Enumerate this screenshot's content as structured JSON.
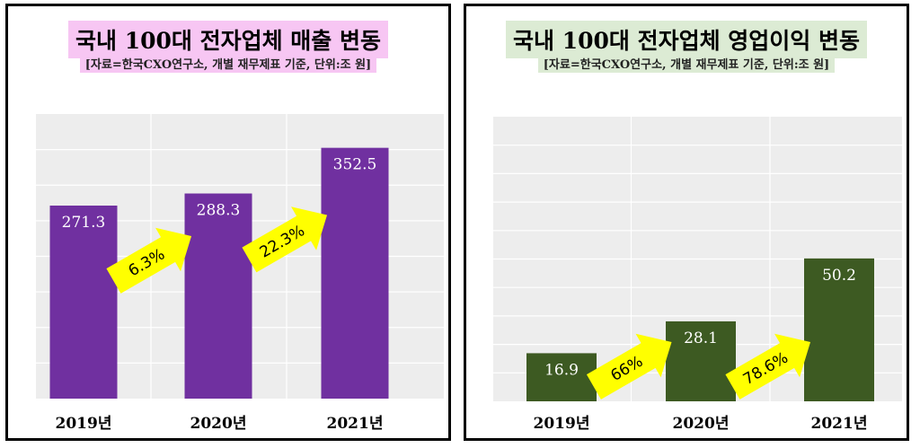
{
  "chart_data": [
    {
      "type": "bar",
      "title": "국내 100대 전자업체 매출 변동",
      "subtitle": "[자료=한국CXO연구소, 개별 재무제표 기준, 단위:조 원]",
      "categories": [
        "2019년",
        "2020년",
        "2021년"
      ],
      "values": [
        271.3,
        288.3,
        352.5
      ],
      "value_labels": [
        "271.3",
        "288.3",
        "352.5"
      ],
      "growth_labels": [
        "6.3%",
        "22.3%"
      ],
      "ylim": [
        0,
        400
      ],
      "grid": true,
      "bar_color": "#7030a0",
      "title_bg": "#f7c6f3"
    },
    {
      "type": "bar",
      "title": "국내 100대 전자업체 영업이익 변동",
      "subtitle": "[자료=한국CXO연구소, 개별 재무제표 기준, 단위:조 원]",
      "categories": [
        "2019년",
        "2020년",
        "2021년"
      ],
      "values": [
        16.9,
        28.1,
        50.2
      ],
      "value_labels": [
        "16.9",
        "28.1",
        "50.2"
      ],
      "growth_labels": [
        "66%",
        "78.6%"
      ],
      "ylim": [
        0,
        100
      ],
      "grid": true,
      "bar_color": "#3d5a22",
      "title_bg": "#dcebd4"
    }
  ]
}
